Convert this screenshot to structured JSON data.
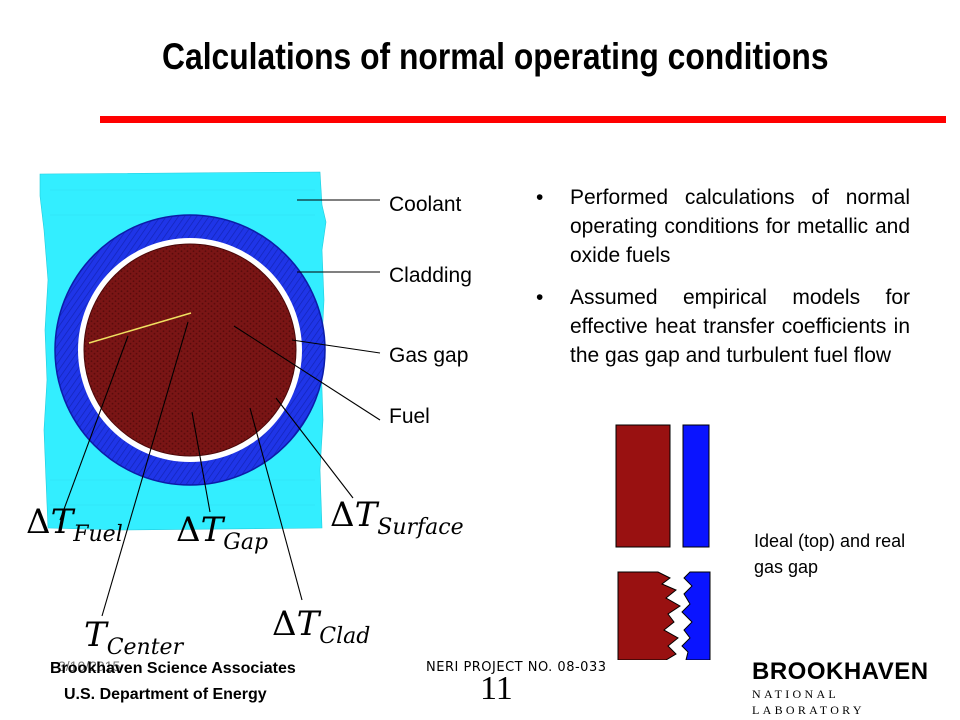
{
  "slide": {
    "title": "Calculations of normal operating conditions",
    "slide_number": "11"
  },
  "diagram": {
    "labels": {
      "coolant": "Coolant",
      "cladding": "Cladding",
      "gas_gap": "Gas gap",
      "fuel": "Fuel"
    },
    "quantities": [
      {
        "delta": "Δ",
        "symbol": "T",
        "subscript": "Fuel"
      },
      {
        "delta": "Δ",
        "symbol": "T",
        "subscript": "Gap"
      },
      {
        "delta": "Δ",
        "symbol": "T",
        "subscript": "Surface"
      },
      {
        "delta": "",
        "symbol": "T",
        "subscript": "Center"
      },
      {
        "delta": "Δ",
        "symbol": "T",
        "subscript": "Clad"
      }
    ],
    "colors": {
      "coolant": "#33eeff",
      "cladding": "#1a2fe0",
      "gas_gap": "#ffffff",
      "fuel": "#7a1515",
      "radius_line": "#f0e060"
    }
  },
  "bullets": [
    "Performed calculations of normal operating conditions for metallic and oxide fuels",
    "Assumed empirical models for effective heat transfer coefficients in the gas gap and turbulent fuel flow"
  ],
  "gap_figure": {
    "caption": "Ideal (top) and real gas gap",
    "colors": {
      "fuel": "#991111",
      "clad": "#0a14ff"
    }
  },
  "footer": {
    "org_line1": "Brookhaven Science Associates",
    "org_line2": "U.S. Department of Energy",
    "date_ghost": "3/10/2015",
    "project": "NERI PROJECT NO. 08-033"
  },
  "logo": {
    "brand": "BROOKHAVEN",
    "sub": "NATIONAL LABORATORY"
  },
  "colors": {
    "title_rule": "#ff0000"
  }
}
